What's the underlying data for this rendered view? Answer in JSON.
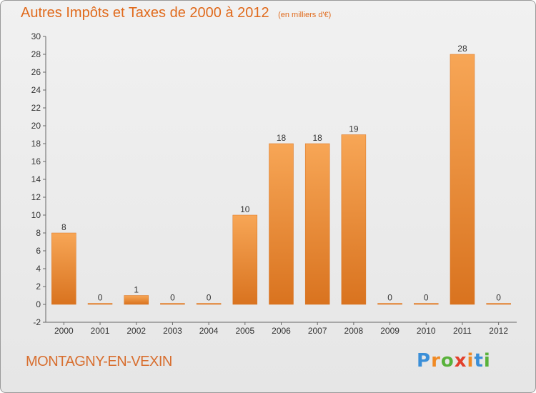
{
  "header": {
    "title": "Autres Impôts et Taxes de 2000 à 2012",
    "subtitle": "(en milliers d'€)"
  },
  "footer": {
    "commune": "MONTAGNY-EN-VEXIN",
    "logo": {
      "text": "Proxiti",
      "letter_colors": [
        "#3b8fd8",
        "#f08a24",
        "#59b23b",
        "#e2402c",
        "#f08a24",
        "#3b8fd8",
        "#59b23b"
      ]
    }
  },
  "chart_data": {
    "type": "bar",
    "title": "Autres Impôts et Taxes de 2000 à 2012",
    "subtitle": "(en milliers d'€)",
    "categories": [
      "2000",
      "2001",
      "2002",
      "2003",
      "2004",
      "2005",
      "2006",
      "2007",
      "2008",
      "2009",
      "2010",
      "2011",
      "2012"
    ],
    "values": [
      8,
      0,
      1,
      0,
      0,
      10,
      18,
      18,
      19,
      0,
      0,
      28,
      0
    ],
    "data_labels": [
      "8",
      "0",
      "1",
      "0",
      "0",
      "10",
      "18",
      "18",
      "19",
      "0",
      "0",
      "28",
      "0"
    ],
    "ylim": [
      -2,
      30
    ],
    "y_ticks": [
      -2,
      0,
      2,
      4,
      6,
      8,
      10,
      12,
      14,
      16,
      18,
      20,
      22,
      24,
      26,
      28,
      30
    ],
    "grid": false,
    "colors": {
      "bar_light": "#f7a656",
      "bar_dark": "#d9731f",
      "axis": "#666666",
      "label": "#333333",
      "title": "#e06a1c"
    }
  }
}
